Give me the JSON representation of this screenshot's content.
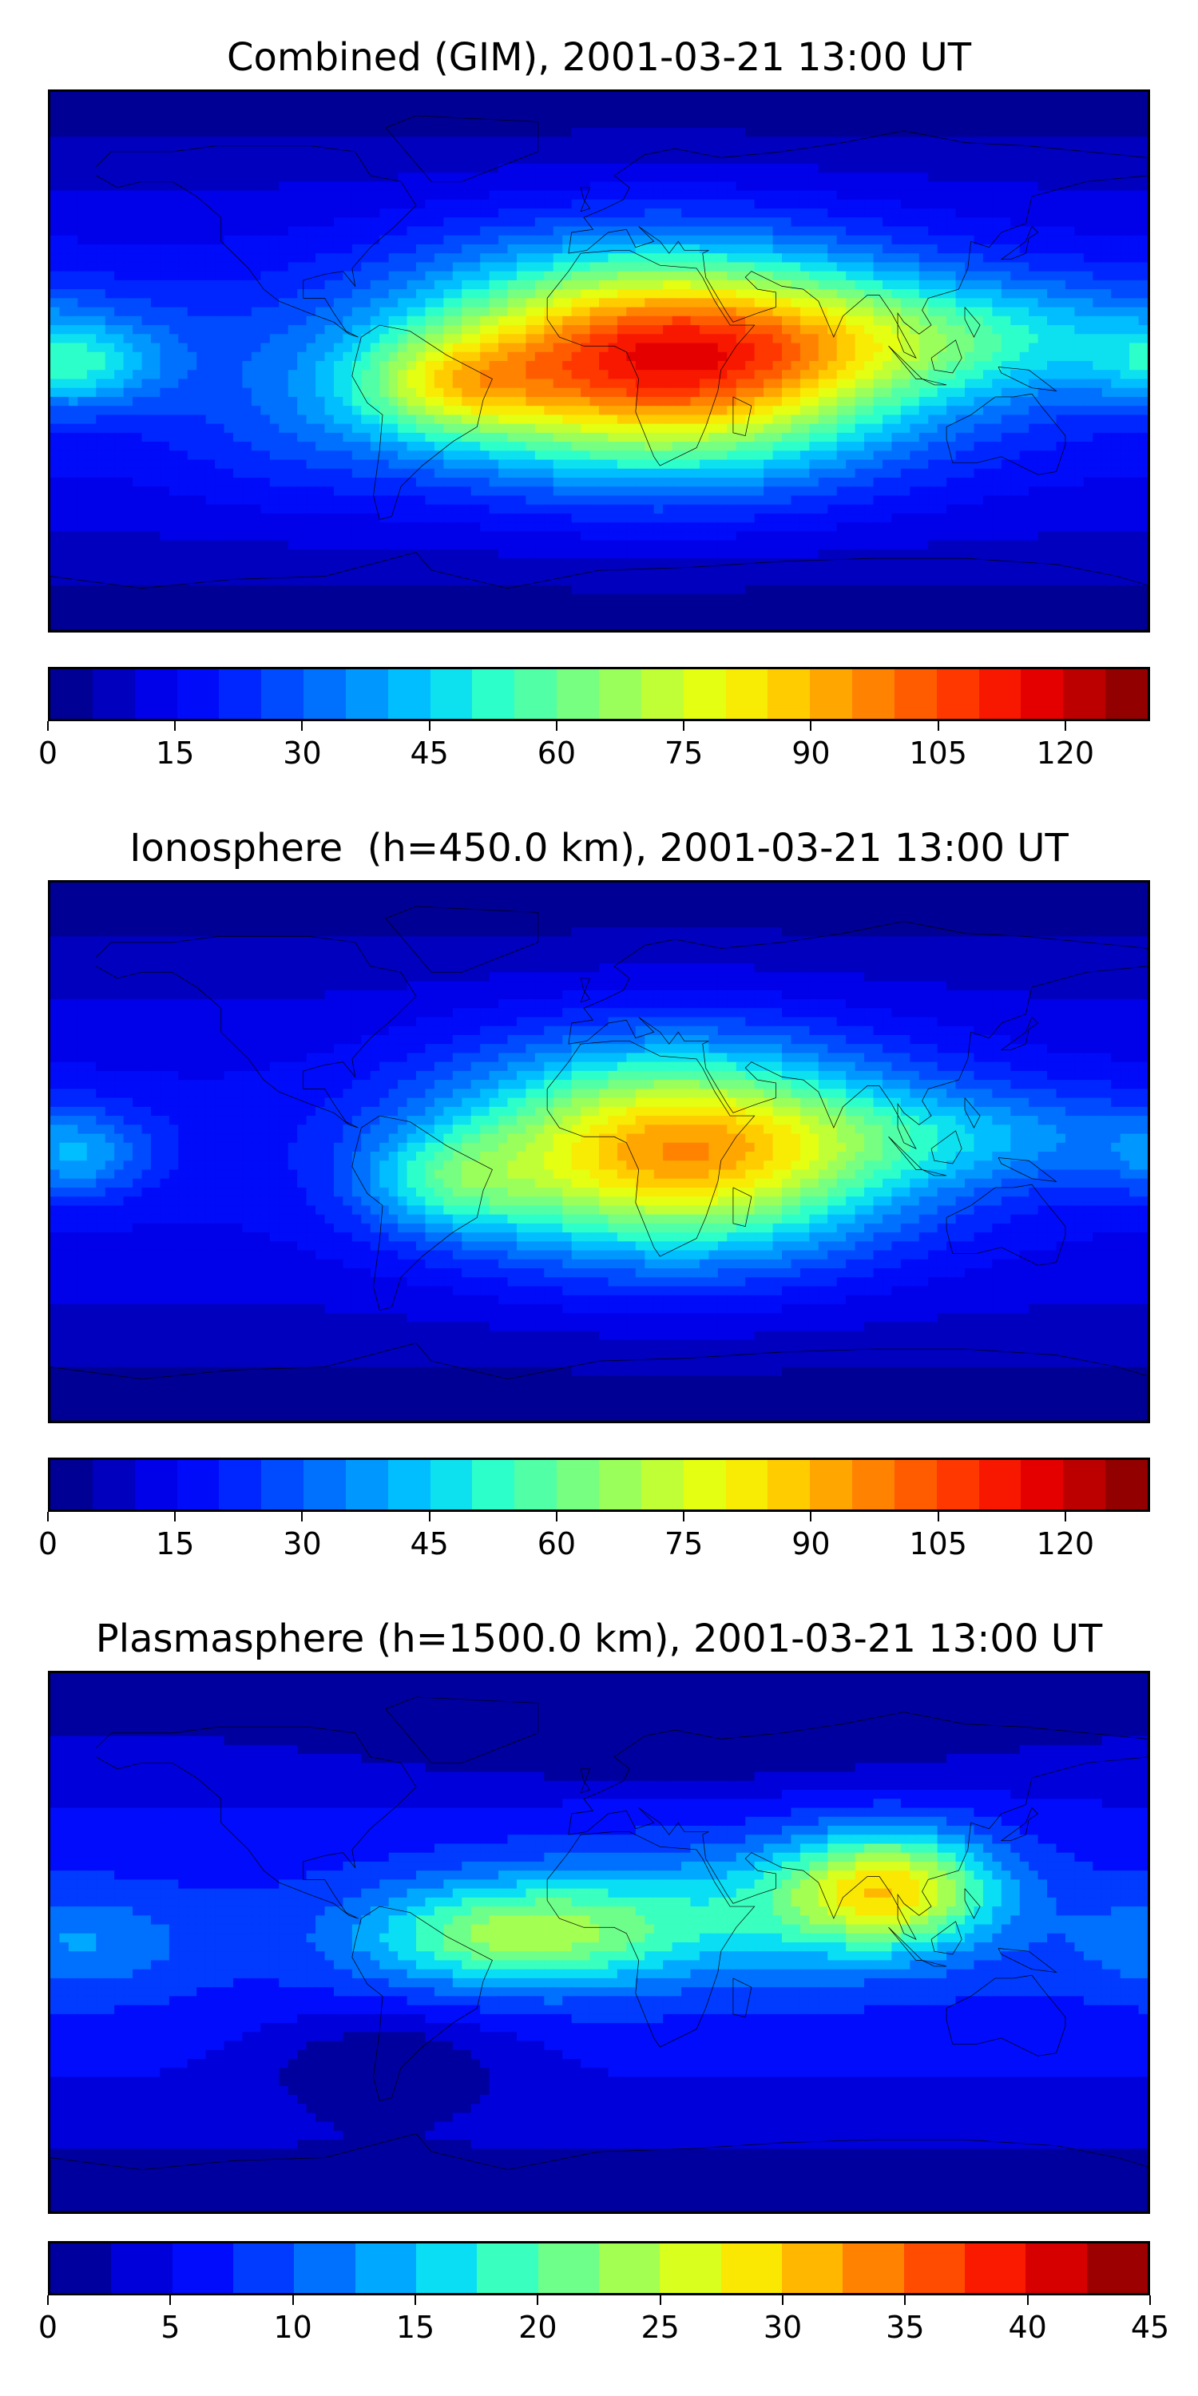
{
  "colors": {
    "jet": [
      "#00007f",
      "#0000b6",
      "#0000ed",
      "#0010ff",
      "#0040ff",
      "#0070ff",
      "#00a4ff",
      "#00d4ff",
      "#29ffce",
      "#58ffa0",
      "#89ff6e",
      "#b9ff3d",
      "#e8ff0e",
      "#ffe200",
      "#ffb200",
      "#ff8200",
      "#ff5100",
      "#ff2200",
      "#e90000",
      "#b40000",
      "#7f0000"
    ]
  },
  "panels": [
    {
      "title": "Combined (GIM), 2001-03-21 13:00 UT",
      "colorbar": {
        "min": 0,
        "max": 130,
        "segments": 26,
        "ticks": [
          "0",
          "15",
          "30",
          "45",
          "60",
          "75",
          "90",
          "105",
          "120"
        ],
        "tick_values": [
          0,
          15,
          30,
          45,
          60,
          75,
          90,
          105,
          120
        ]
      },
      "field": {
        "base": 0.14,
        "blobs": [
          [
            20,
            0,
            55,
            25,
            0.72
          ],
          [
            -50,
            -8,
            22,
            12,
            0.22
          ],
          [
            -170,
            -2,
            18,
            10,
            0.18
          ],
          [
            120,
            8,
            60,
            14,
            0.2
          ],
          [
            -100,
            -20,
            30,
            20,
            0.06
          ]
        ]
      }
    },
    {
      "title": "Ionosphere  (h=450.0 km), 2001-03-21 13:00 UT",
      "colorbar": {
        "min": 0,
        "max": 130,
        "segments": 26,
        "ticks": [
          "0",
          "15",
          "30",
          "45",
          "60",
          "75",
          "90",
          "105",
          "120"
        ],
        "tick_values": [
          0,
          15,
          30,
          45,
          60,
          75,
          90,
          105,
          120
        ]
      },
      "field": {
        "base": 0.12,
        "blobs": [
          [
            25,
            0,
            50,
            24,
            0.6
          ],
          [
            -50,
            -10,
            20,
            12,
            0.18
          ],
          [
            -170,
            -2,
            15,
            10,
            0.14
          ],
          [
            125,
            5,
            50,
            12,
            0.14
          ]
        ]
      }
    },
    {
      "title": "Plasmasphere (h=1500.0 km), 2001-03-21 13:00 UT",
      "colorbar": {
        "min": 0,
        "max": 45,
        "segments": 18,
        "ticks": [
          "0",
          "5",
          "10",
          "15",
          "20",
          "25",
          "30",
          "35",
          "40",
          "45"
        ],
        "tick_values": [
          0,
          5,
          10,
          15,
          20,
          25,
          30,
          35,
          40,
          45
        ]
      },
      "field": {
        "base": 0.16,
        "blobs": [
          [
            95,
            18,
            25,
            14,
            0.45
          ],
          [
            -30,
            2,
            35,
            12,
            0.3
          ],
          [
            30,
            10,
            50,
            16,
            0.18
          ],
          [
            -170,
            0,
            25,
            12,
            0.12
          ],
          [
            -70,
            -40,
            30,
            12,
            -0.12
          ],
          [
            20,
            68,
            60,
            10,
            -0.1
          ]
        ]
      }
    }
  ]
}
